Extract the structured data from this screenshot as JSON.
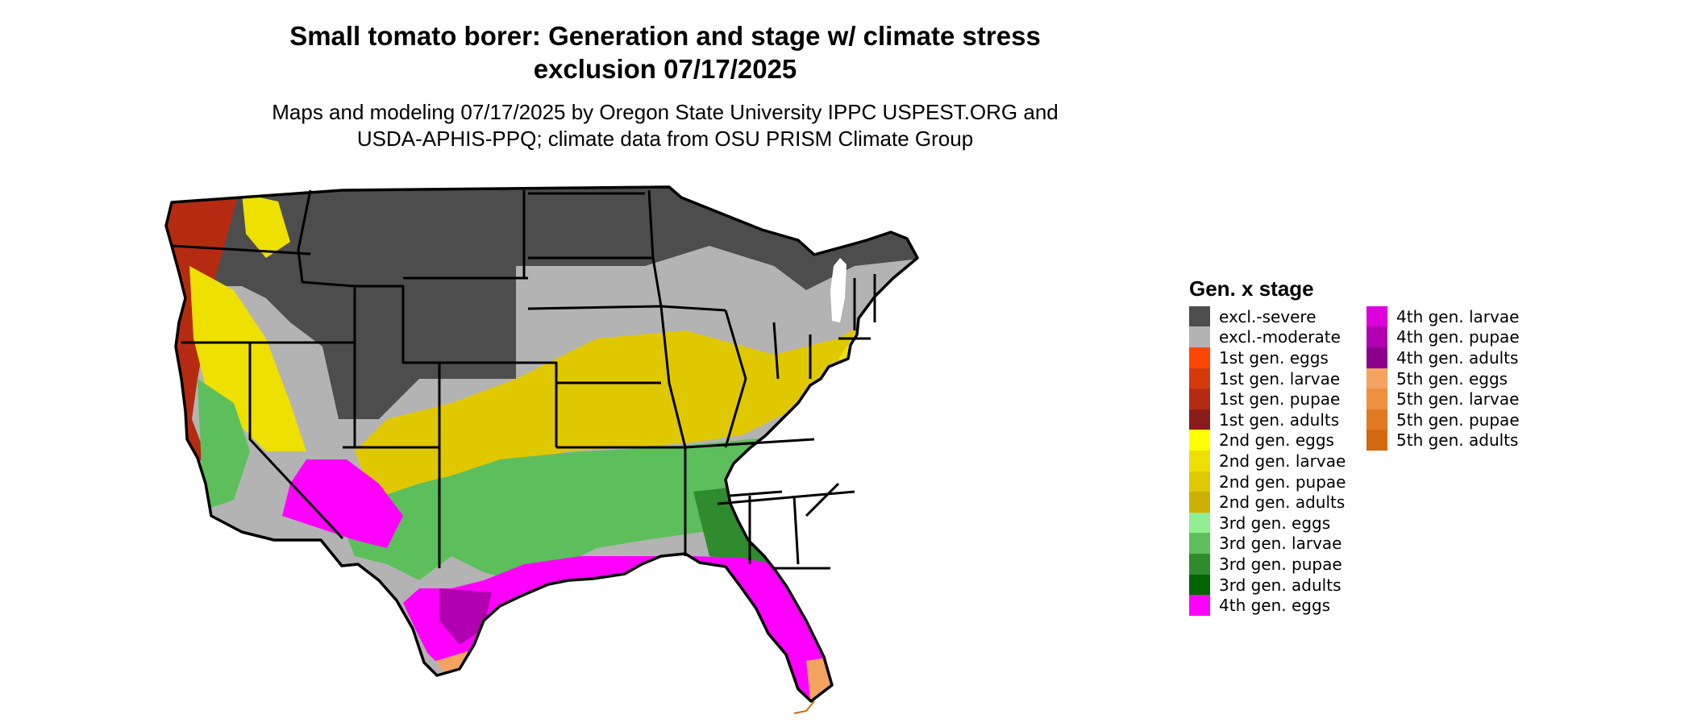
{
  "title": {
    "line1": "Small tomato borer: Generation and stage w/ climate stress",
    "line2": "exclusion 07/17/2025"
  },
  "subtitle": {
    "line1": "Maps and modeling 07/17/2025 by Oregon State University IPPC USPEST.ORG and",
    "line2": "USDA-APHIS-PPQ; climate data from OSU PRISM Climate Group"
  },
  "legend": {
    "title": "Gen. x stage",
    "items": [
      {
        "label": "excl.-severe",
        "color": "#4d4d4d"
      },
      {
        "label": "excl.-moderate",
        "color": "#b3b3b3"
      },
      {
        "label": "1st gen. eggs",
        "color": "#ff4500"
      },
      {
        "label": "1st gen. larvae",
        "color": "#d63a0c"
      },
      {
        "label": "1st gen. pupae",
        "color": "#b52b12"
      },
      {
        "label": "1st gen. adults",
        "color": "#8b1a1a"
      },
      {
        "label": "2nd gen. eggs",
        "color": "#ffff00"
      },
      {
        "label": "2nd gen. larvae",
        "color": "#eee000"
      },
      {
        "label": "2nd gen. pupae",
        "color": "#e0c800"
      },
      {
        "label": "2nd gen. adults",
        "color": "#cdb000"
      },
      {
        "label": "3rd gen. eggs",
        "color": "#90ee90"
      },
      {
        "label": "3rd gen. larvae",
        "color": "#5cbf5c"
      },
      {
        "label": "3rd gen. pupae",
        "color": "#2e8b2e"
      },
      {
        "label": "3rd gen. adults",
        "color": "#006400"
      },
      {
        "label": "4th gen. eggs",
        "color": "#ff00ff"
      },
      {
        "label": "4th gen. larvae",
        "color": "#dd00dd"
      },
      {
        "label": "4th gen. pupae",
        "color": "#b000b0"
      },
      {
        "label": "4th gen. adults",
        "color": "#8b008b"
      },
      {
        "label": "5th gen. eggs",
        "color": "#f4a460"
      },
      {
        "label": "5th gen. larvae",
        "color": "#ee9040"
      },
      {
        "label": "5th gen. pupae",
        "color": "#e07b24"
      },
      {
        "label": "5th gen. adults",
        "color": "#d2690e"
      }
    ]
  }
}
